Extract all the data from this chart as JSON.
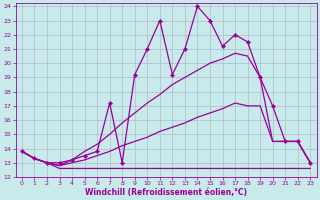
{
  "xlabel": "Windchill (Refroidissement éolien,°C)",
  "bg_color": "#c8eaea",
  "grid_color": "#b0b8d0",
  "line_color": "#990099",
  "xlim": [
    -0.5,
    23.5
  ],
  "ylim": [
    12,
    24.2
  ],
  "xticks": [
    0,
    1,
    2,
    3,
    4,
    5,
    6,
    7,
    8,
    9,
    10,
    11,
    12,
    13,
    14,
    15,
    16,
    17,
    18,
    19,
    20,
    21,
    22,
    23
  ],
  "yticks": [
    12,
    13,
    14,
    15,
    16,
    17,
    18,
    19,
    20,
    21,
    22,
    23,
    24
  ],
  "line1": {
    "x": [
      0,
      1,
      2,
      3,
      4,
      5,
      6,
      7,
      8,
      9,
      10,
      11,
      12,
      13,
      14,
      15,
      16,
      17,
      18,
      19,
      20,
      21,
      22,
      23
    ],
    "y": [
      13.8,
      13.3,
      13.0,
      12.6,
      12.6,
      12.6,
      12.6,
      12.6,
      12.6,
      12.6,
      12.6,
      12.6,
      12.6,
      12.6,
      12.6,
      12.6,
      12.6,
      12.6,
      12.6,
      12.6,
      12.6,
      12.6,
      12.6,
      12.6
    ]
  },
  "line2": {
    "x": [
      0,
      1,
      2,
      3,
      4,
      5,
      6,
      7,
      8,
      9,
      10,
      11,
      12,
      13,
      14,
      15,
      16,
      17,
      18,
      19,
      20,
      21,
      22,
      23
    ],
    "y": [
      13.8,
      13.3,
      13.0,
      12.8,
      13.0,
      13.2,
      13.5,
      13.8,
      14.2,
      14.5,
      14.8,
      15.2,
      15.5,
      15.8,
      16.2,
      16.5,
      16.8,
      17.2,
      17.0,
      17.0,
      14.5,
      14.5,
      14.5,
      13.0
    ]
  },
  "line3": {
    "x": [
      0,
      1,
      2,
      3,
      4,
      5,
      6,
      7,
      8,
      9,
      10,
      11,
      12,
      13,
      14,
      15,
      16,
      17,
      18,
      19,
      20,
      21,
      22,
      23
    ],
    "y": [
      13.8,
      13.3,
      13.0,
      12.8,
      13.2,
      13.8,
      14.3,
      15.0,
      15.8,
      16.5,
      17.2,
      17.8,
      18.5,
      19.0,
      19.5,
      20.0,
      20.3,
      20.7,
      20.5,
      19.0,
      14.5,
      14.5,
      14.5,
      13.0
    ]
  },
  "line4": {
    "x": [
      0,
      1,
      2,
      3,
      4,
      5,
      6,
      7,
      8,
      9,
      10,
      11,
      12,
      13,
      14,
      15,
      16,
      17,
      18,
      19,
      20,
      21,
      22,
      23
    ],
    "y": [
      13.8,
      13.3,
      13.0,
      13.0,
      13.2,
      13.5,
      13.8,
      17.2,
      13.0,
      19.2,
      21.0,
      23.0,
      19.2,
      21.0,
      24.0,
      23.0,
      21.2,
      22.0,
      21.5,
      19.0,
      17.0,
      14.5,
      14.5,
      13.0
    ]
  }
}
